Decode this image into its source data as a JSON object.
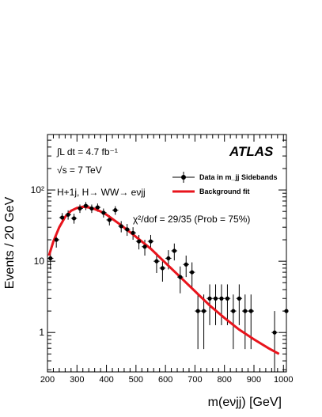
{
  "chart_data": {
    "type": "scatter",
    "xlabel": "m(eνjj) [GeV]",
    "ylabel": "Events / 20 GeV",
    "xlim": [
      200,
      1010
    ],
    "ylim": [
      0.28,
      600
    ],
    "yscale": "log",
    "x_ticks": [
      "200",
      "300",
      "400",
      "500",
      "600",
      "700",
      "800",
      "900",
      "1000"
    ],
    "y_ticks": [
      {
        "value": 1,
        "label": "1"
      },
      {
        "value": 10,
        "label": "10"
      },
      {
        "value": 100,
        "label": "10²"
      }
    ],
    "grid": false,
    "legend_placement": "top-right",
    "colors": {
      "data": "#000000",
      "fit": "#e8141c"
    },
    "annotations": {
      "experiment": "ATLAS",
      "lumi": "∫L dt = 4.7 fb⁻¹",
      "energy": "√s = 7 TeV",
      "channel": "H+1j, H→ WW→ eνjj",
      "chi2": "χ²/dof = 29/35 (Prob = 75%)"
    },
    "series": [
      {
        "name": "Data in m_jj Sidebands",
        "kind": "points_with_errors",
        "points": [
          {
            "x": 210,
            "y": 11
          },
          {
            "x": 230,
            "y": 20
          },
          {
            "x": 250,
            "y": 41
          },
          {
            "x": 270,
            "y": 45
          },
          {
            "x": 290,
            "y": 40
          },
          {
            "x": 310,
            "y": 55
          },
          {
            "x": 330,
            "y": 60
          },
          {
            "x": 350,
            "y": 55
          },
          {
            "x": 370,
            "y": 57
          },
          {
            "x": 390,
            "y": 48
          },
          {
            "x": 410,
            "y": 38
          },
          {
            "x": 430,
            "y": 52
          },
          {
            "x": 450,
            "y": 31
          },
          {
            "x": 470,
            "y": 28
          },
          {
            "x": 490,
            "y": 25
          },
          {
            "x": 510,
            "y": 19
          },
          {
            "x": 530,
            "y": 16
          },
          {
            "x": 550,
            "y": 19
          },
          {
            "x": 570,
            "y": 10
          },
          {
            "x": 590,
            "y": 8
          },
          {
            "x": 610,
            "y": 11
          },
          {
            "x": 630,
            "y": 14
          },
          {
            "x": 650,
            "y": 6
          },
          {
            "x": 670,
            "y": 9
          },
          {
            "x": 690,
            "y": 7
          },
          {
            "x": 710,
            "y": 2
          },
          {
            "x": 730,
            "y": 2
          },
          {
            "x": 750,
            "y": 3
          },
          {
            "x": 770,
            "y": 3
          },
          {
            "x": 790,
            "y": 3
          },
          {
            "x": 810,
            "y": 3
          },
          {
            "x": 830,
            "y": 2
          },
          {
            "x": 850,
            "y": 3
          },
          {
            "x": 870,
            "y": 2
          },
          {
            "x": 890,
            "y": 2
          },
          {
            "x": 970,
            "y": 1
          },
          {
            "x": 1010,
            "y": 2
          }
        ]
      },
      {
        "name": "Background fit",
        "kind": "line",
        "points": [
          {
            "x": 205,
            "y": 12
          },
          {
            "x": 220,
            "y": 19
          },
          {
            "x": 240,
            "y": 30
          },
          {
            "x": 260,
            "y": 42
          },
          {
            "x": 280,
            "y": 51
          },
          {
            "x": 300,
            "y": 56
          },
          {
            "x": 320,
            "y": 58
          },
          {
            "x": 340,
            "y": 57
          },
          {
            "x": 360,
            "y": 54
          },
          {
            "x": 380,
            "y": 50
          },
          {
            "x": 400,
            "y": 45
          },
          {
            "x": 450,
            "y": 32
          },
          {
            "x": 500,
            "y": 22
          },
          {
            "x": 550,
            "y": 15
          },
          {
            "x": 600,
            "y": 9.5
          },
          {
            "x": 650,
            "y": 6.0
          },
          {
            "x": 700,
            "y": 3.8
          },
          {
            "x": 750,
            "y": 2.4
          },
          {
            "x": 800,
            "y": 1.6
          },
          {
            "x": 850,
            "y": 1.1
          },
          {
            "x": 900,
            "y": 0.8
          },
          {
            "x": 950,
            "y": 0.6
          },
          {
            "x": 985,
            "y": 0.5
          }
        ]
      }
    ]
  }
}
